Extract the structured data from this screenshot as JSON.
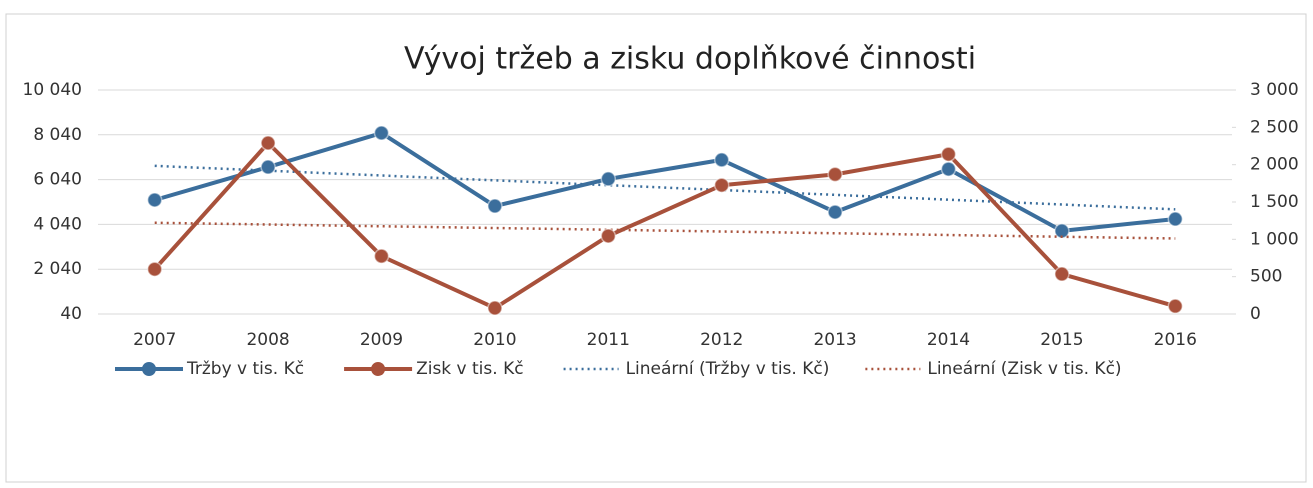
{
  "chart_data": {
    "type": "line",
    "title": "Vývoj tržeb a zisku doplňkové činnosti",
    "categories": [
      "2007",
      "2008",
      "2009",
      "2010",
      "2011",
      "2012",
      "2013",
      "2014",
      "2015",
      "2016"
    ],
    "series": [
      {
        "name": "Tržby v tis. Kč",
        "color": "#3b6e9c",
        "axis": "y",
        "trend_name": "Lineární (Tržby v tis. Kč)",
        "values": [
          5130,
          6600,
          8120,
          4860,
          6070,
          6920,
          4590,
          6510,
          3750,
          4280
        ]
      },
      {
        "name": "Zisk v tis. Kč",
        "color": "#a8513b",
        "axis": "y2",
        "trend_name": "Lineární (Zisk v tis. Kč)",
        "values": [
          600,
          2290,
          775,
          80,
          1045,
          1725,
          1870,
          2140,
          535,
          105
        ]
      }
    ],
    "ylim": [
      40,
      10040
    ],
    "yticks": [
      40,
      {
        "value": 2040,
        "label": "2 040"
      },
      {
        "value": 4040,
        "label": "4 040"
      },
      {
        "value": 6040,
        "label": "6 040"
      },
      {
        "value": 8040,
        "label": "8 040"
      },
      {
        "value": 10040,
        "label": "10 040"
      }
    ],
    "y2lim": [
      0,
      3000
    ],
    "y2ticks": [
      0,
      500,
      {
        "value": 1000,
        "label": "1 000"
      },
      {
        "value": 1500,
        "label": "1 500"
      },
      {
        "value": 2000,
        "label": "2 000"
      },
      {
        "value": 2500,
        "label": "2 500"
      },
      {
        "value": 3000,
        "label": "3 000"
      }
    ],
    "grid": true,
    "legend": "bottom"
  }
}
